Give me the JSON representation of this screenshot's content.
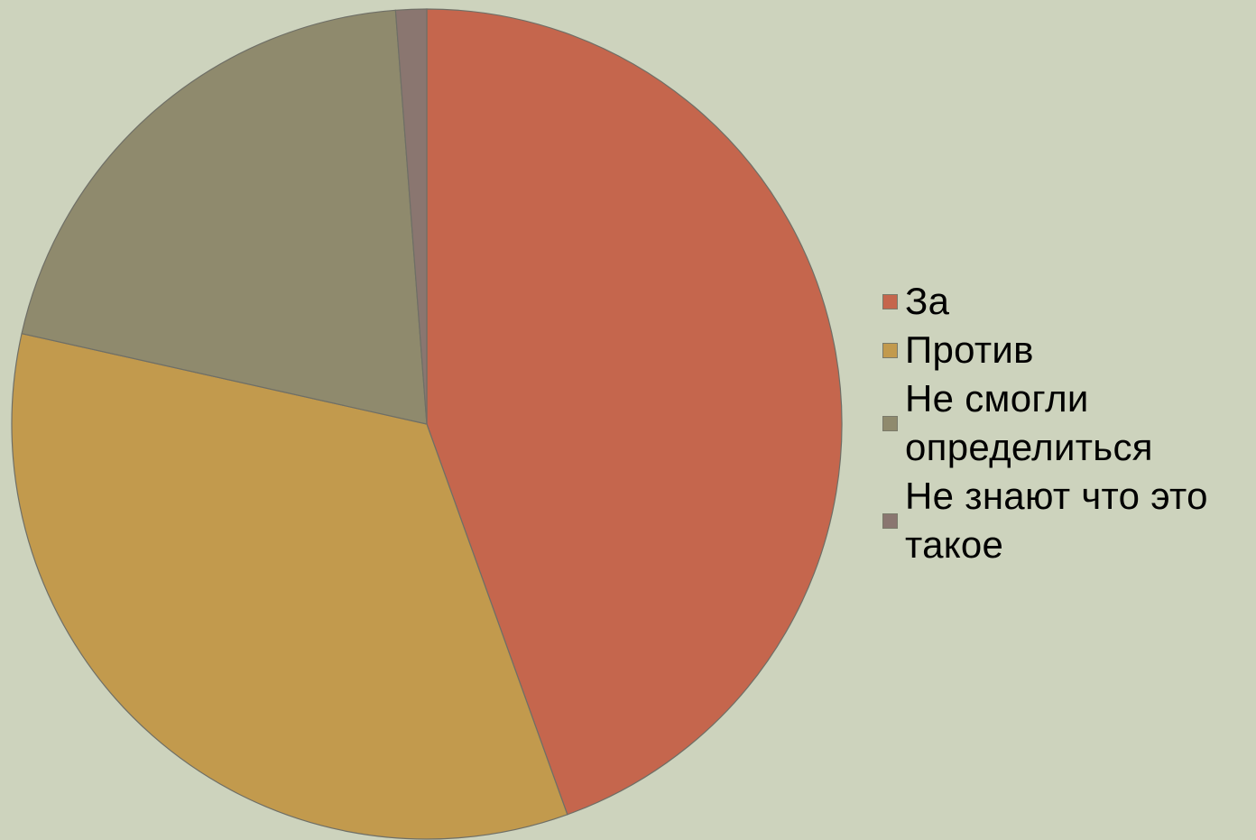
{
  "chart_data": {
    "type": "pie",
    "title": "",
    "categories": [
      "За",
      "Против",
      "Не смогли определиться",
      "Не знают что это такое"
    ],
    "values": [
      44.5,
      34.0,
      20.3,
      1.2
    ],
    "colors": [
      "#c5664d",
      "#c29a4d",
      "#8f8a6d",
      "#8a7670"
    ],
    "start_angle_deg": 0,
    "direction": "clockwise",
    "legend_position": "right",
    "slice_border_color": "#6f6f66",
    "data_labels": false
  }
}
